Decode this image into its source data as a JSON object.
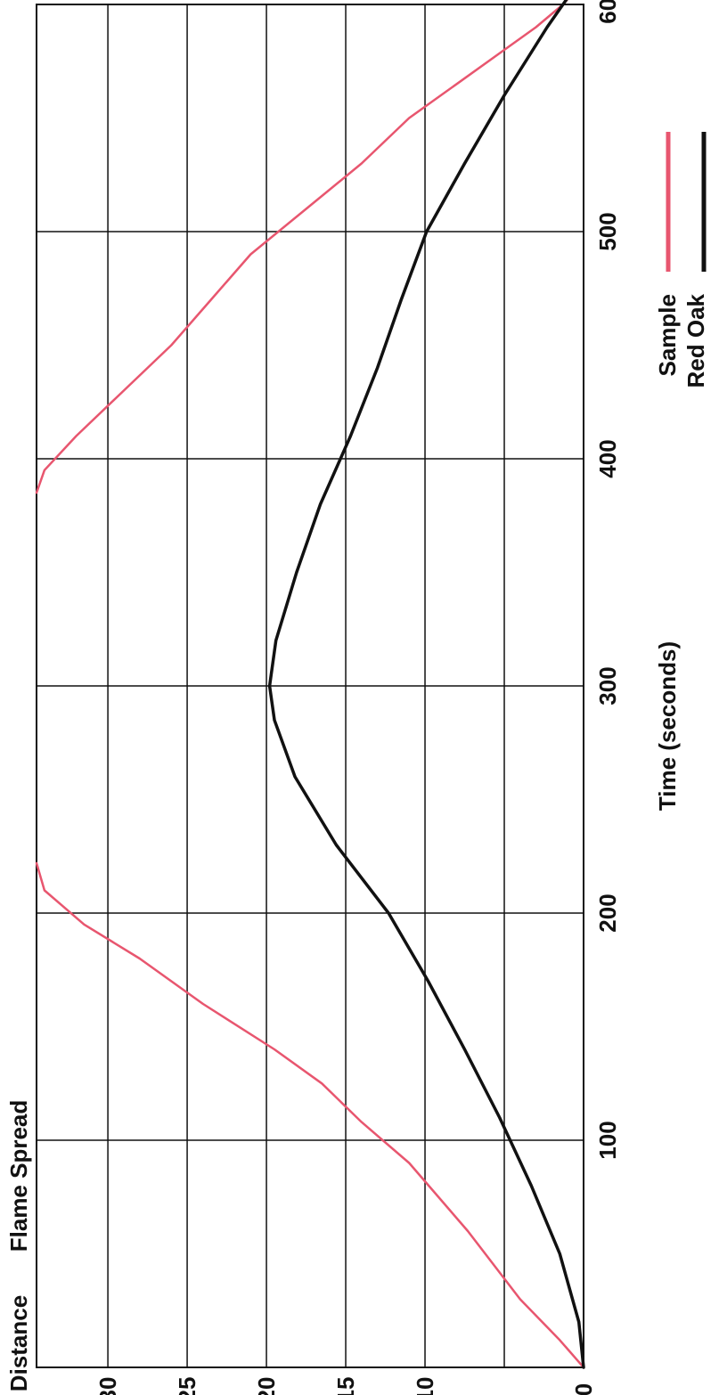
{
  "colors": {
    "sample": "#e8566f",
    "red_oak": "#111111",
    "grid": "#111111",
    "text": "#111111"
  },
  "chart_data": {
    "type": "line",
    "title": "Flame Spread",
    "ylabel": "Distance",
    "xlabel": "Time (seconds)",
    "xlim": [
      0,
      600
    ],
    "ylim": [
      0,
      34.5
    ],
    "x_ticks": [
      "100",
      "200",
      "300",
      "400",
      "500",
      "600"
    ],
    "y_ticks": [
      "0",
      "10",
      "15",
      "20",
      "25",
      "30"
    ],
    "y_tick_values": [
      0,
      10,
      15,
      20,
      25,
      30
    ],
    "grid": true,
    "legend_position": "bottom-right",
    "series": [
      {
        "name": "Sample",
        "color": "#e8566f",
        "segments": [
          [
            [
              0,
              0
            ],
            [
              12,
              1.5
            ],
            [
              30,
              4
            ],
            [
              60,
              7.3
            ],
            [
              90,
              11
            ],
            [
              108,
              14
            ],
            [
              125,
              16.5
            ],
            [
              140,
              19.5
            ],
            [
              160,
              24
            ],
            [
              180,
              28
            ],
            [
              195,
              31.5
            ],
            [
              210,
              34
            ],
            [
              222,
              34.5
            ]
          ],
          [
            [
              385,
              34.5
            ],
            [
              395,
              34
            ],
            [
              410,
              32
            ],
            [
              430,
              29
            ],
            [
              450,
              26
            ],
            [
              470,
              23.5
            ],
            [
              490,
              21
            ],
            [
              510,
              17.5
            ],
            [
              530,
              14
            ],
            [
              550,
              11
            ],
            [
              565,
              8
            ],
            [
              580,
              5
            ],
            [
              590,
              3
            ],
            [
              600,
              1.3
            ],
            [
              608,
              0.3
            ]
          ]
        ]
      },
      {
        "name": "Red Oak",
        "color": "#111111",
        "points": [
          [
            0,
            0
          ],
          [
            20,
            0.3
          ],
          [
            50,
            1.5
          ],
          [
            80,
            3.3
          ],
          [
            110,
            5.3
          ],
          [
            140,
            7.5
          ],
          [
            170,
            9.8
          ],
          [
            200,
            12.3
          ],
          [
            230,
            15.6
          ],
          [
            260,
            18.2
          ],
          [
            285,
            19.5
          ],
          [
            300,
            19.8
          ],
          [
            320,
            19.4
          ],
          [
            350,
            18.1
          ],
          [
            380,
            16.6
          ],
          [
            410,
            14.7
          ],
          [
            440,
            13.0
          ],
          [
            470,
            11.5
          ],
          [
            500,
            9.9
          ],
          [
            530,
            7.5
          ],
          [
            560,
            5.0
          ],
          [
            590,
            2.3
          ],
          [
            610,
            0.3
          ]
        ]
      }
    ]
  }
}
